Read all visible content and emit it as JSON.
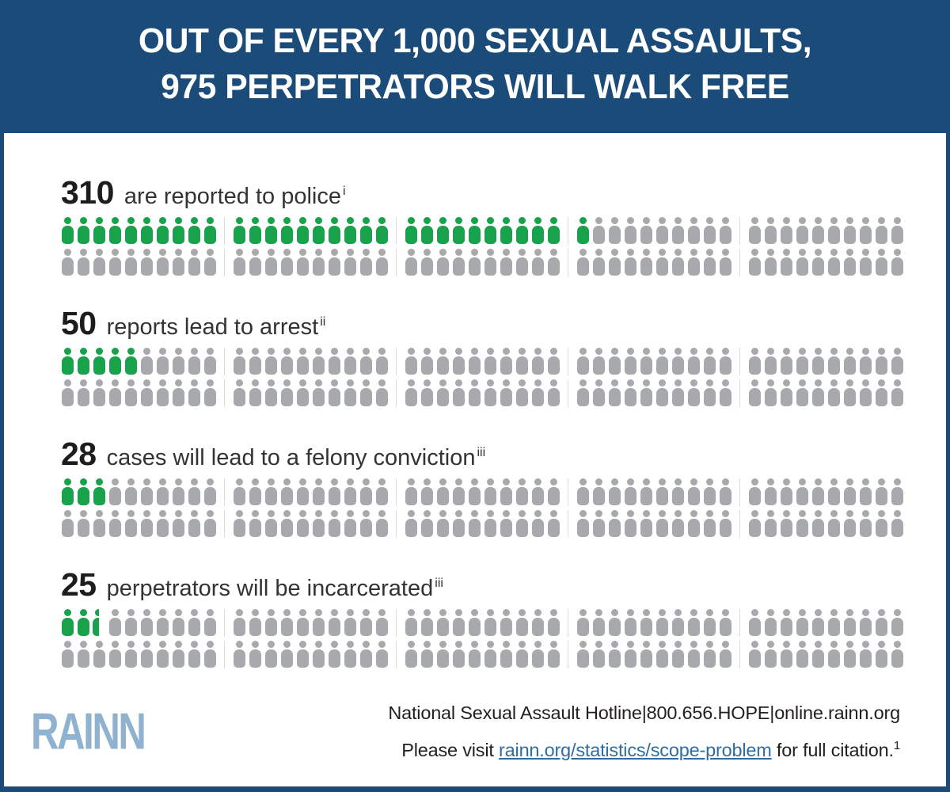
{
  "header": {
    "title_line1": "OUT OF EVERY 1,000 SEXUAL ASSAULTS,",
    "title_line2": "975 PERPETRATORS WILL WALK FREE"
  },
  "rows": [
    {
      "number": "310",
      "label": "are reported to police",
      "footnote": "i",
      "green_full": 31,
      "half_icon": false
    },
    {
      "number": "50",
      "label": "reports lead to arrest",
      "footnote": "ii",
      "green_full": 5,
      "half_icon": false
    },
    {
      "number": "28",
      "label": "cases will lead to a felony conviction",
      "footnote": "iii",
      "green_full": 3,
      "half_icon": false
    },
    {
      "number": "25",
      "label": "perpetrators will be incarcerated",
      "footnote": "iii",
      "green_full": 2,
      "half_icon": true
    }
  ],
  "pictogram": {
    "lines": 2,
    "groups_per_line": 5,
    "icons_per_group": 10,
    "total_icons_per_row": 100
  },
  "footer": {
    "logo": "RAINN",
    "hotline_line": "National Sexual Assault Hotline|800.656.HOPE|online.rainn.org",
    "visit_prefix": "Please visit ",
    "link_text": "rainn.org/statistics/scope-problem",
    "visit_suffix": " for full citation.",
    "citation_sup": "1"
  },
  "colors": {
    "header_blue": "#1b4b78",
    "icon_green": "#18a24c",
    "icon_gray": "#a7a9ac",
    "group_divider": "#dcdcdc",
    "logo_blue": "#8fb2d0",
    "link_blue": "#2e6da4"
  },
  "chart_data": {
    "type": "pictogram",
    "title": "OUT OF EVERY 1,000 SEXUAL ASSAULTS, 975 PERPETRATORS WILL WALK FREE",
    "total_base": 1000,
    "persons_per_icon": 10,
    "icons_per_category": 100,
    "categories": [
      "are reported to police",
      "reports lead to arrest",
      "cases will lead to a felony conviction",
      "perpetrators will be incarcerated"
    ],
    "values": [
      310,
      50,
      28,
      25
    ],
    "footnote_marks": [
      "i",
      "ii",
      "iii",
      "iii"
    ],
    "highlight_color": "#18a24c",
    "base_color": "#a7a9ac",
    "legend_position": "none",
    "grid": false
  }
}
